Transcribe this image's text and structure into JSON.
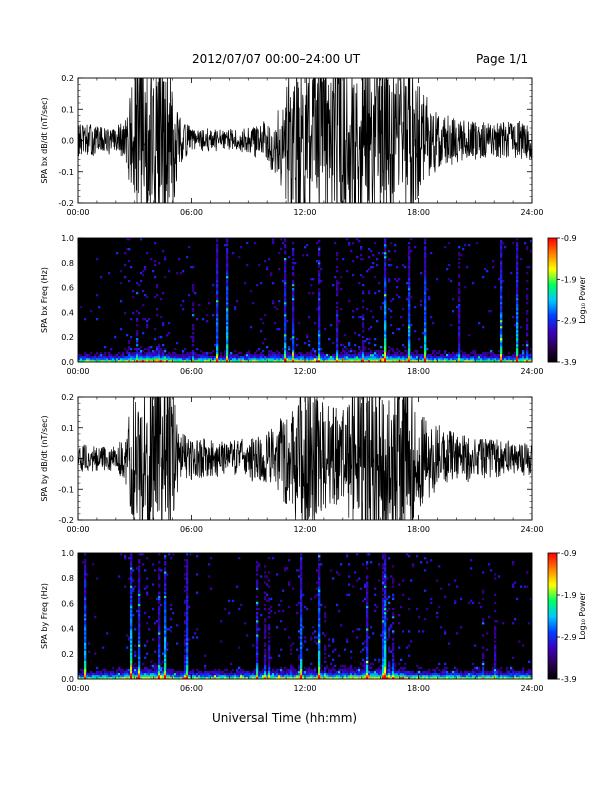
{
  "header": {
    "title": "2012/07/07   00:00–24:00 UT",
    "page": "Page 1/1"
  },
  "footer": {
    "xlabel": "Universal Time (hh:mm)"
  },
  "chart_data": [
    {
      "type": "line",
      "ylabel": "SPA bx dB/dt (nT/sec)",
      "xlim": [
        0,
        24
      ],
      "ylim": [
        -0.2,
        0.2
      ],
      "xticks": [
        "00:00",
        "06:00",
        "12:00",
        "18:00",
        "24:00"
      ],
      "yticks": [
        "-0.2",
        "-0.1",
        "0.0",
        "0.1",
        "0.2"
      ],
      "yticks_minor": 10,
      "envelope": {
        "x": [
          0,
          1,
          2,
          2.6,
          3,
          3.5,
          4,
          4.5,
          5,
          5.3,
          6,
          7,
          8,
          9,
          10,
          10.5,
          11,
          11.5,
          12,
          13,
          14,
          15,
          15.5,
          16,
          17,
          17.5,
          18,
          18.5,
          19,
          20,
          21,
          22,
          23,
          24
        ],
        "amp": [
          0.04,
          0.035,
          0.03,
          0.06,
          0.2,
          0.2,
          0.2,
          0.2,
          0.2,
          0.06,
          0.03,
          0.025,
          0.025,
          0.03,
          0.05,
          0.09,
          0.15,
          0.2,
          0.2,
          0.2,
          0.2,
          0.2,
          0.2,
          0.2,
          0.2,
          0.2,
          0.14,
          0.1,
          0.07,
          0.05,
          0.045,
          0.04,
          0.045,
          0.045
        ]
      },
      "series_color": "#000000"
    },
    {
      "type": "heatmap",
      "ylabel": "SPA bx Freq (Hz)",
      "xlim": [
        0,
        24
      ],
      "ylim": [
        0.0,
        1.0
      ],
      "xticks": [
        "00:00",
        "06:00",
        "12:00",
        "18:00",
        "24:00"
      ],
      "yticks": [
        "0.0",
        "0.2",
        "0.4",
        "0.6",
        "0.8",
        "1.0"
      ],
      "colorbar": {
        "label": "Log₁₀ Power",
        "ticks": [
          "-0.9",
          "-1.9",
          "-2.9",
          "-3.9"
        ],
        "range": [
          -3.9,
          -0.9
        ],
        "colormap": [
          "#000000",
          "#2a0050",
          "#3a00c0",
          "#0040ff",
          "#00c8ff",
          "#00ff60",
          "#ffff00",
          "#ff8000",
          "#ff0000"
        ]
      },
      "activity": {
        "x": [
          0,
          2,
          3,
          3.5,
          4.5,
          5,
          6,
          8,
          10,
          11,
          12,
          13,
          14.5,
          15,
          16,
          17,
          17.5,
          18,
          19,
          20,
          22,
          24
        ],
        "level": [
          0.15,
          0.2,
          0.75,
          0.8,
          0.85,
          0.3,
          0.2,
          0.2,
          0.4,
          0.5,
          0.5,
          0.45,
          0.6,
          0.7,
          0.75,
          0.7,
          0.55,
          0.4,
          0.3,
          0.25,
          0.25,
          0.3
        ]
      },
      "seed": 11
    },
    {
      "type": "line",
      "ylabel": "SPA by dB/dt (nT/sec)",
      "xlim": [
        0,
        24
      ],
      "ylim": [
        -0.2,
        0.2
      ],
      "xticks": [
        "00:00",
        "06:00",
        "12:00",
        "18:00",
        "24:00"
      ],
      "yticks": [
        "-0.2",
        "-0.1",
        "0.0",
        "0.1",
        "0.2"
      ],
      "yticks_minor": 10,
      "envelope": {
        "x": [
          0,
          1,
          2,
          2.6,
          3,
          3.5,
          4,
          4.5,
          5,
          5.3,
          6,
          7,
          8,
          9,
          10,
          10.5,
          11,
          11.5,
          12,
          13,
          14,
          15,
          15.5,
          16,
          17,
          17.5,
          18,
          18.5,
          19,
          20,
          21,
          22,
          23,
          24
        ],
        "amp": [
          0.035,
          0.03,
          0.03,
          0.07,
          0.2,
          0.2,
          0.2,
          0.2,
          0.2,
          0.07,
          0.05,
          0.045,
          0.04,
          0.05,
          0.06,
          0.08,
          0.12,
          0.15,
          0.2,
          0.13,
          0.12,
          0.2,
          0.2,
          0.2,
          0.2,
          0.2,
          0.13,
          0.1,
          0.08,
          0.06,
          0.05,
          0.045,
          0.04,
          0.04
        ]
      },
      "series_color": "#000000"
    },
    {
      "type": "heatmap",
      "ylabel": "SPA by Freq (Hz)",
      "xlim": [
        0,
        24
      ],
      "ylim": [
        0.0,
        1.0
      ],
      "xticks": [
        "00:00",
        "06:00",
        "12:00",
        "18:00",
        "24:00"
      ],
      "yticks": [
        "0.0",
        "0.2",
        "0.4",
        "0.6",
        "0.8",
        "1.0"
      ],
      "colorbar": {
        "label": "Log₁₀ Power",
        "ticks": [
          "-0.9",
          "-1.9",
          "-2.9",
          "-3.9"
        ],
        "range": [
          -3.9,
          -0.9
        ],
        "colormap": [
          "#000000",
          "#2a0050",
          "#3a00c0",
          "#0040ff",
          "#00c8ff",
          "#00ff60",
          "#ffff00",
          "#ff8000",
          "#ff0000"
        ]
      },
      "activity": {
        "x": [
          0,
          2,
          3,
          3.5,
          4.5,
          5,
          6,
          8,
          10,
          11,
          12,
          13,
          14.5,
          15,
          16,
          17,
          17.5,
          18,
          19,
          20,
          22,
          24
        ],
        "level": [
          0.15,
          0.2,
          0.8,
          0.85,
          0.9,
          0.3,
          0.2,
          0.2,
          0.4,
          0.45,
          0.45,
          0.4,
          0.6,
          0.75,
          0.8,
          0.75,
          0.55,
          0.4,
          0.3,
          0.25,
          0.25,
          0.3
        ]
      },
      "seed": 29
    }
  ]
}
